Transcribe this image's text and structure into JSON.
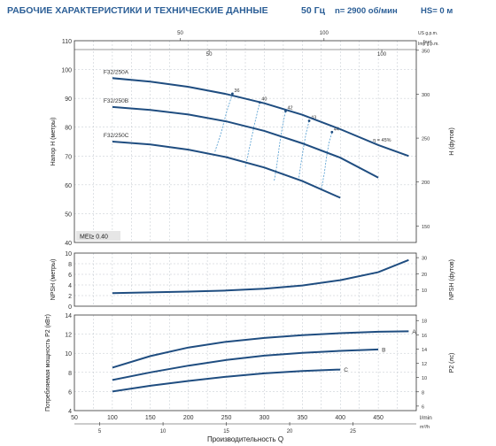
{
  "header": {
    "title": "РАБОЧИЕ ХАРАКТЕРИСТИКИ И ТЕХНИЧЕСКИЕ ДАННЫЕ",
    "frequency": "50 Гц",
    "speed": "n= 2900 об/мин",
    "suction_head": "HS= 0 м"
  },
  "colors": {
    "curve": "#1f4d80",
    "iso": "#4f9bd0",
    "title": "#2b5e96",
    "grid": "#bfc5cc"
  },
  "top_axes": {
    "us_unit": "US g.p.m.",
    "imp_unit": "Imp g.p.m.",
    "us_ticks": [
      50,
      100
    ],
    "imp_ticks": [
      50,
      100
    ]
  },
  "bottom_axes": {
    "lmin_unit": "l/min",
    "m3h_unit": "m³/h",
    "xlabel": "Производительность Q",
    "lmin_ticks": [
      50,
      100,
      150,
      200,
      250,
      300,
      350,
      400,
      450
    ],
    "m3h_ticks": [
      5,
      10,
      15,
      20,
      25
    ]
  },
  "chart_data": [
    {
      "id": "head",
      "type": "line",
      "ylabel_left": "Напор H (метры)",
      "ylabel_right": "H (футов)",
      "xlim": [
        50,
        500
      ],
      "ylim": [
        40,
        110
      ],
      "yticks": [
        40,
        50,
        60,
        70,
        80,
        90,
        100,
        110
      ],
      "feet_ticks": [
        150,
        200,
        250,
        300,
        350
      ],
      "feet_unit": "feet",
      "mei": "MEI≥ 0.40",
      "series": [
        {
          "name": "F32/250A",
          "x": [
            100,
            150,
            200,
            250,
            300,
            350,
            400,
            450,
            490
          ],
          "y": [
            97,
            95.8,
            94,
            91.5,
            88.3,
            84.3,
            79.3,
            73.8,
            70
          ]
        },
        {
          "name": "F32/250B",
          "x": [
            100,
            150,
            200,
            250,
            300,
            350,
            400,
            450
          ],
          "y": [
            87,
            86,
            84.4,
            82,
            78.7,
            74.4,
            69.4,
            62.5
          ]
        },
        {
          "name": "F32/250C",
          "x": [
            100,
            150,
            200,
            250,
            300,
            350,
            400
          ],
          "y": [
            75,
            74,
            72.2,
            69.6,
            66,
            61.3,
            55.5
          ]
        }
      ],
      "efficiency_curves": [
        {
          "label": "36",
          "x": [
            235,
            243,
            250,
            258
          ],
          "y": [
            71.5,
            78,
            85,
            91.6
          ]
        },
        {
          "label": "40",
          "x": [
            275,
            281,
            287,
            294
          ],
          "y": [
            66.2,
            73.5,
            81,
            88.6
          ]
        },
        {
          "label": "42",
          "x": [
            313,
            316,
            320,
            324,
            328
          ],
          "y": [
            61.5,
            66,
            74,
            80.5,
            85.6
          ]
        },
        {
          "label": "43",
          "x": [
            345,
            348,
            352,
            355,
            359
          ],
          "y": [
            61.5,
            67,
            73.5,
            78,
            82.2
          ]
        },
        {
          "label": "44",
          "x": [
            375,
            379,
            382,
            385,
            389
          ],
          "y": [
            58.5,
            64,
            70,
            74.5,
            78.3
          ]
        }
      ],
      "efficiency_tag": "η = 45%",
      "efficiency_tag_at": [
        455,
        75
      ]
    },
    {
      "id": "npsh",
      "type": "line",
      "ylabel_left": "NPSH (метры)",
      "ylabel_right": "NPSH (футов)",
      "xlim": [
        50,
        500
      ],
      "ylim": [
        0,
        10
      ],
      "yticks": [
        0,
        2,
        4,
        6,
        8,
        10
      ],
      "feet_ticks": [
        10,
        20,
        30
      ],
      "series": [
        {
          "x": [
            100,
            150,
            200,
            250,
            300,
            350,
            400,
            450,
            490
          ],
          "y": [
            2.45,
            2.6,
            2.75,
            2.95,
            3.3,
            3.9,
            4.9,
            6.4,
            8.7
          ]
        }
      ]
    },
    {
      "id": "power",
      "type": "line",
      "ylabel_left": "Потребляемая мощность P2 (кВт)",
      "ylabel_right": "P2 (лс)",
      "xlim": [
        50,
        500
      ],
      "ylim": [
        4,
        14
      ],
      "yticks": [
        4,
        6,
        8,
        10,
        12,
        14
      ],
      "hp_ticks": [
        6,
        8,
        10,
        12,
        14,
        16,
        18
      ],
      "series": [
        {
          "name": "A",
          "x": [
            100,
            150,
            200,
            250,
            300,
            350,
            400,
            450,
            490
          ],
          "y": [
            8.5,
            9.7,
            10.6,
            11.2,
            11.6,
            11.9,
            12.1,
            12.25,
            12.3
          ]
        },
        {
          "name": "B",
          "x": [
            100,
            150,
            200,
            250,
            300,
            350,
            400,
            450
          ],
          "y": [
            7.2,
            8.0,
            8.7,
            9.3,
            9.75,
            10.05,
            10.25,
            10.4
          ]
        },
        {
          "name": "C",
          "x": [
            100,
            150,
            200,
            250,
            300,
            350,
            400
          ],
          "y": [
            6.0,
            6.6,
            7.1,
            7.55,
            7.9,
            8.15,
            8.3
          ]
        }
      ]
    }
  ]
}
